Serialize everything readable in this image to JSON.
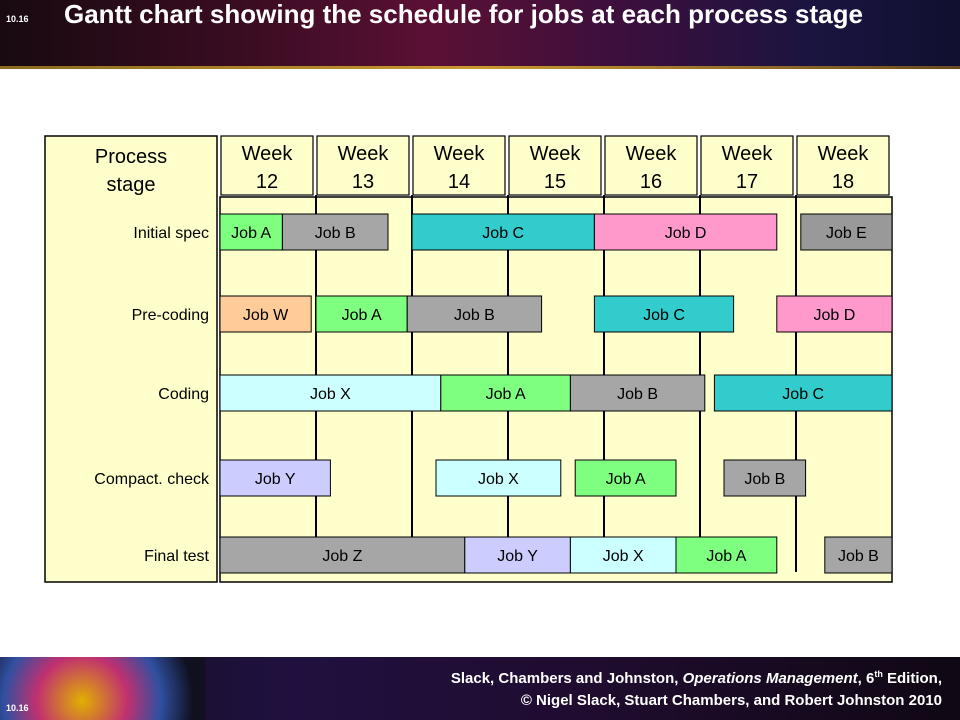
{
  "slide": {
    "number": "10.16",
    "title": "Gantt chart showing the schedule for jobs at  each process stage",
    "footer": {
      "line1_prefix": "Slack, Chambers and Johnston, ",
      "line1_book": "Operations Management",
      "line1_sep": ", 6",
      "line1_sup": "th",
      "line1_suffix": " Edition,",
      "line2": "© Nigel Slack, Stuart Chambers, and Robert Johnston 2010"
    }
  },
  "chart_data": {
    "type": "gantt",
    "row_header": "Process stage",
    "x_unit": "week",
    "xlim": [
      12,
      19
    ],
    "weeks": [
      {
        "label": "Week 12",
        "start": 12
      },
      {
        "label": "Week 13",
        "start": 13
      },
      {
        "label": "Week 14",
        "start": 14
      },
      {
        "label": "Week 15",
        "start": 15
      },
      {
        "label": "Week 16",
        "start": 16
      },
      {
        "label": "Week 17",
        "start": 17
      },
      {
        "label": "Week 18",
        "start": 18
      }
    ],
    "stages": [
      "Initial spec",
      "Pre-coding",
      "Coding",
      "Compact. check",
      "Final test"
    ],
    "colors": {
      "panel": "#ffffcc",
      "Job A": "#7fff7f",
      "Job B": "#a6a6a6",
      "Job C": "#33cccc",
      "Job D": "#ff99cc",
      "Job E": "#999999",
      "Job W": "#ffcc99",
      "Job X": "#ccffff",
      "Job Y": "#ccccff",
      "Job Z": "#a6a6a6"
    },
    "tasks": [
      {
        "stage": 0,
        "job": "Job A",
        "start": 12.0,
        "end": 12.65
      },
      {
        "stage": 0,
        "job": "Job B",
        "start": 12.65,
        "end": 13.75
      },
      {
        "stage": 0,
        "job": "Job C",
        "start": 14.0,
        "end": 15.9
      },
      {
        "stage": 0,
        "job": "Job D",
        "start": 15.9,
        "end": 17.8
      },
      {
        "stage": 0,
        "job": "Job E",
        "start": 18.05,
        "end": 19.0
      },
      {
        "stage": 1,
        "job": "Job W",
        "start": 12.0,
        "end": 12.95
      },
      {
        "stage": 1,
        "job": "Job A",
        "start": 13.0,
        "end": 13.95
      },
      {
        "stage": 1,
        "job": "Job B",
        "start": 13.95,
        "end": 15.35
      },
      {
        "stage": 1,
        "job": "Job C",
        "start": 15.9,
        "end": 17.35
      },
      {
        "stage": 1,
        "job": "Job D",
        "start": 17.8,
        "end": 19.0
      },
      {
        "stage": 2,
        "job": "Job X",
        "start": 12.0,
        "end": 14.3
      },
      {
        "stage": 2,
        "job": "Job A",
        "start": 14.3,
        "end": 15.65
      },
      {
        "stage": 2,
        "job": "Job B",
        "start": 15.65,
        "end": 17.05
      },
      {
        "stage": 2,
        "job": "Job C",
        "start": 17.15,
        "end": 19.0
      },
      {
        "stage": 3,
        "job": "Job Y",
        "start": 12.0,
        "end": 13.15
      },
      {
        "stage": 3,
        "job": "Job X",
        "start": 14.25,
        "end": 15.55
      },
      {
        "stage": 3,
        "job": "Job A",
        "start": 15.7,
        "end": 16.75
      },
      {
        "stage": 3,
        "job": "Job B",
        "start": 17.25,
        "end": 18.1
      },
      {
        "stage": 4,
        "job": "Job Z",
        "start": 12.0,
        "end": 14.55
      },
      {
        "stage": 4,
        "job": "Job Y",
        "start": 14.55,
        "end": 15.65
      },
      {
        "stage": 4,
        "job": "Job X",
        "start": 15.65,
        "end": 16.75
      },
      {
        "stage": 4,
        "job": "Job A",
        "start": 16.75,
        "end": 17.8
      },
      {
        "stage": 4,
        "job": "Job B",
        "start": 18.3,
        "end": 19.0
      }
    ]
  }
}
